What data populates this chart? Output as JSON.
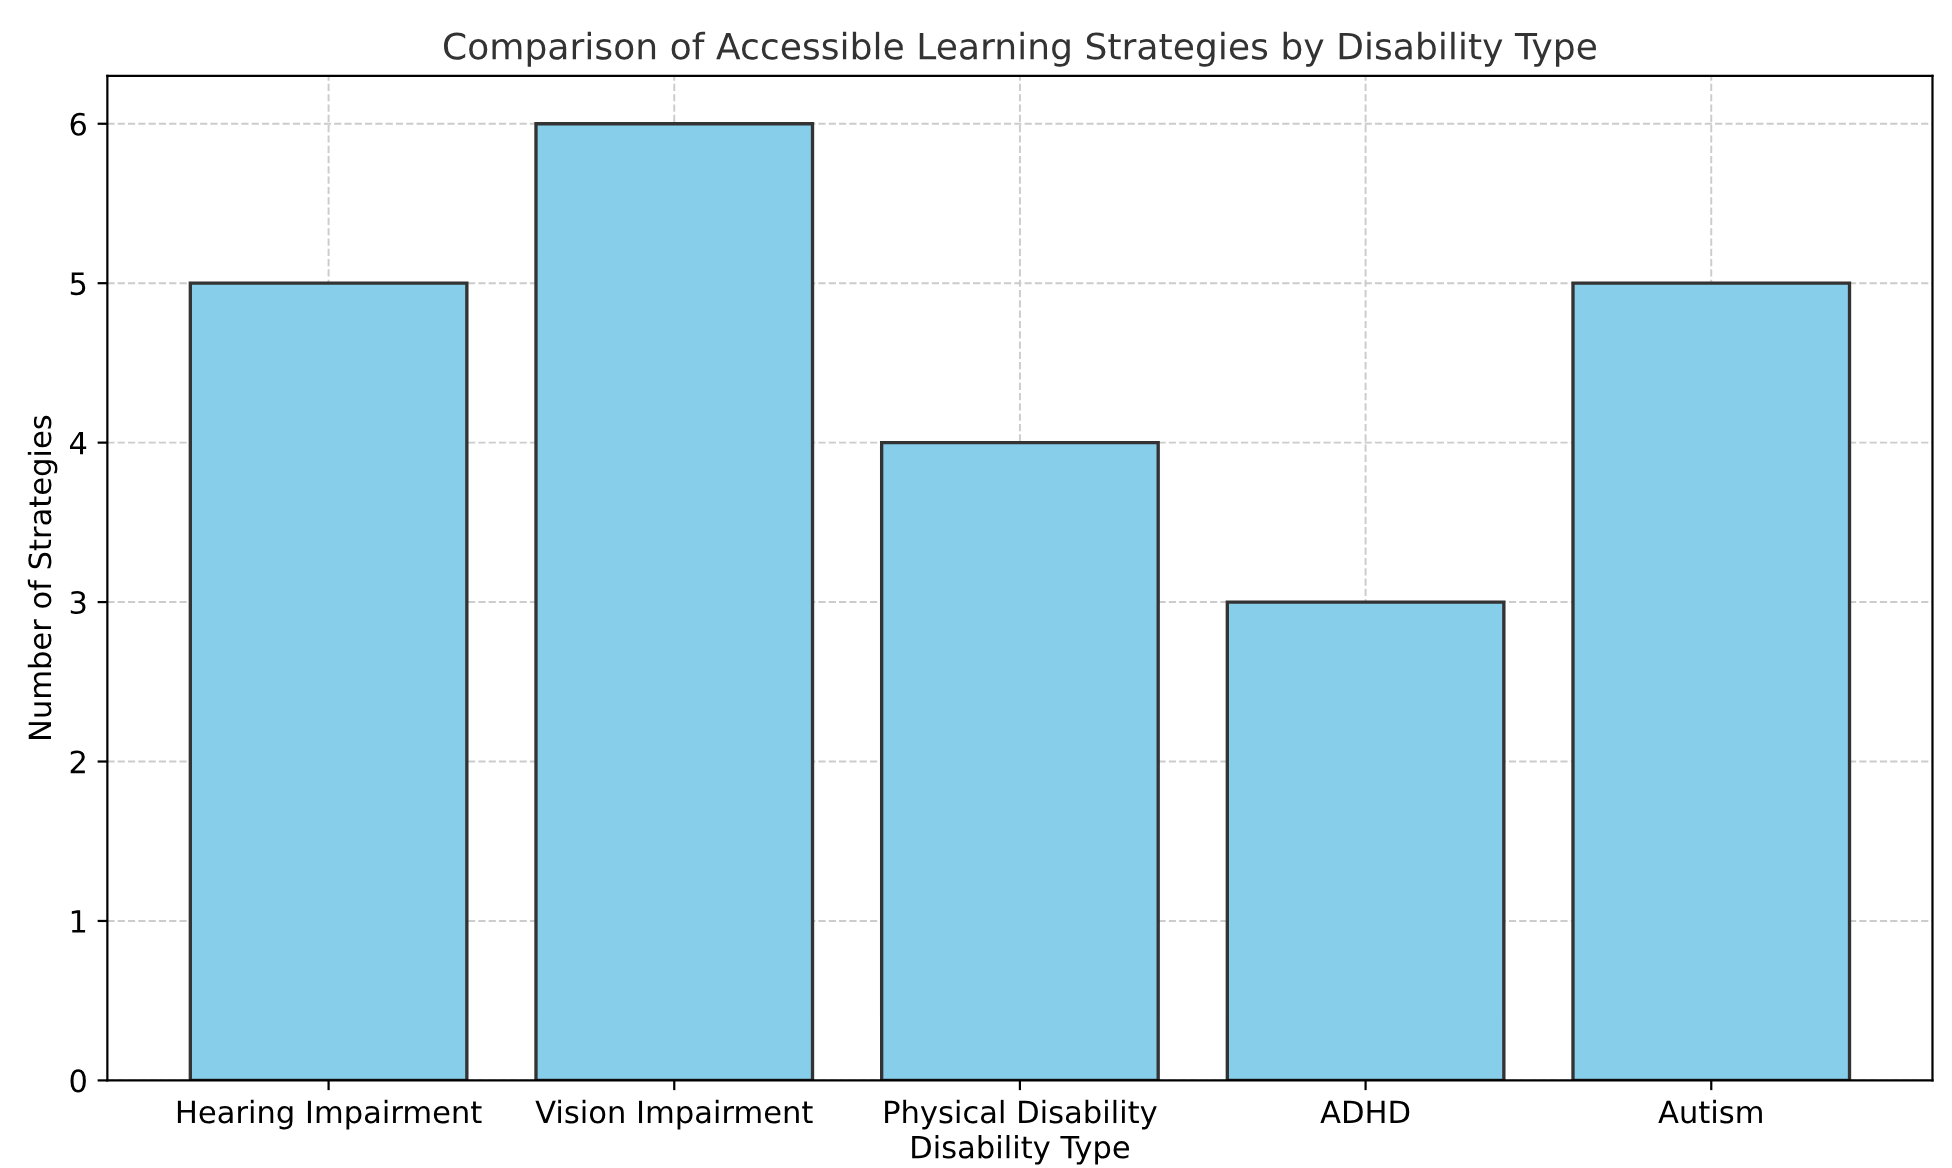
{
  "chart_data": {
    "type": "bar",
    "title": "Comparison of Accessible Learning Strategies by Disability Type",
    "xlabel": "Disability Type",
    "ylabel": "Number of Strategies",
    "categories": [
      "Hearing Impairment",
      "Vision Impairment",
      "Physical Disability",
      "ADHD",
      "Autism"
    ],
    "values": [
      5,
      6,
      4,
      3,
      5
    ],
    "color": "#87ceeb",
    "ylim": [
      0,
      6.3
    ],
    "yticks": [
      0,
      1,
      2,
      3,
      4,
      5,
      6
    ],
    "grid": true
  }
}
